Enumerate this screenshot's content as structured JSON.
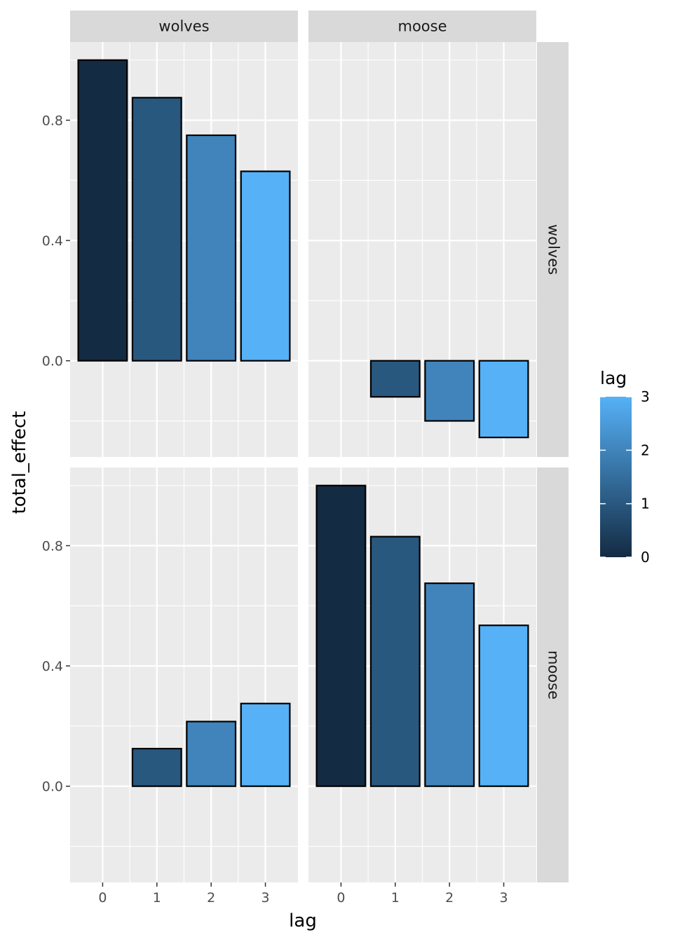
{
  "chart_data": {
    "type": "bar",
    "facet_layout": "grid",
    "facet_columns": [
      "wolves",
      "moose"
    ],
    "facet_rows": [
      "wolves",
      "moose"
    ],
    "categories": [
      "0",
      "1",
      "2",
      "3"
    ],
    "xlabel": "lag",
    "ylabel": "total_effect",
    "ylim": [
      -0.32,
      1.06
    ],
    "yticks": [
      0.0,
      0.4,
      0.8
    ],
    "ytick_labels": [
      "0.0",
      "0.4",
      "0.8"
    ],
    "panels": [
      {
        "row": "wolves",
        "col": "wolves",
        "values": [
          1.0,
          0.875,
          0.75,
          0.63
        ]
      },
      {
        "row": "wolves",
        "col": "moose",
        "values": [
          0.0,
          -0.12,
          -0.2,
          -0.255
        ]
      },
      {
        "row": "moose",
        "col": "wolves",
        "values": [
          0.0,
          0.125,
          0.215,
          0.275
        ]
      },
      {
        "row": "moose",
        "col": "moose",
        "values": [
          1.0,
          0.83,
          0.675,
          0.535
        ]
      }
    ],
    "bar_outline": "#000000",
    "grid": true,
    "panel_background": "#ebebeb",
    "strip_background": "#d9d9d9",
    "legend": {
      "title": "lag",
      "placement": "right",
      "type": "colorbar",
      "range": [
        0,
        3
      ],
      "ticks": [
        "0",
        "1",
        "2",
        "3"
      ],
      "colors": [
        "#132b43",
        "#56b1f7"
      ]
    }
  }
}
